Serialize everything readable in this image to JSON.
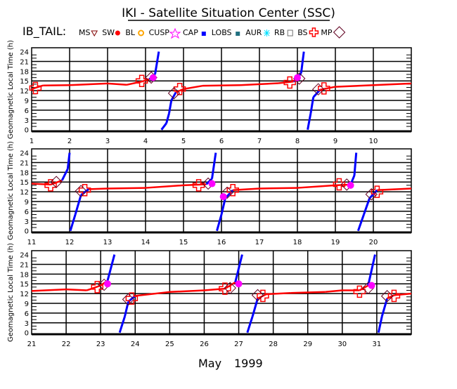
{
  "title": "IKI - Satellite Situation Center (SSC)",
  "legend": {
    "label": "IB_TAIL:",
    "items": [
      {
        "name": "MS",
        "symbol": "triangle-down",
        "color": "#800000"
      },
      {
        "name": "SW",
        "symbol": "sun",
        "color": "#ff0000"
      },
      {
        "name": "BL",
        "symbol": "circle-ring",
        "color": "#ffa500"
      },
      {
        "name": "CUSP",
        "symbol": "star",
        "color": "#ff00ff"
      },
      {
        "name": "CAP",
        "symbol": "filled-square",
        "color": "#0000ff"
      },
      {
        "name": "LOBS",
        "symbol": "small-square",
        "color": "#207080"
      },
      {
        "name": "AUR",
        "symbol": "asterisk",
        "color": "#00e0ff"
      },
      {
        "name": "RB",
        "symbol": "open-square",
        "color": "#707070"
      },
      {
        "name": "BS",
        "symbol": "cross",
        "color": "#ff0000"
      },
      {
        "name": "MP",
        "symbol": "diamond",
        "color": "#600020"
      }
    ]
  },
  "xlabel_month": "May",
  "xlabel_year": "1999",
  "chart_data": [
    {
      "type": "scatter",
      "ylabel": "Geomagnetic Local Time (h)",
      "yticks": [
        0,
        3,
        6,
        9,
        12,
        15,
        18,
        21,
        24
      ],
      "ylim": [
        -0.5,
        25.2
      ],
      "xlim": [
        1,
        11
      ],
      "xticks": [
        "1",
        "2",
        "3",
        "4",
        "5",
        "6",
        "7",
        "8",
        "9",
        "10"
      ],
      "trace": [
        [
          1,
          12.5
        ],
        [
          1.3,
          13.6
        ],
        [
          2,
          13.7
        ],
        [
          3,
          14.2
        ],
        [
          3.5,
          13.8
        ],
        [
          3.9,
          14.8
        ],
        [
          4.1,
          15.5
        ],
        [
          4.25,
          17
        ],
        [
          4.35,
          24
        ]
      ],
      "trace2": [
        [
          4.42,
          0
        ],
        [
          4.55,
          2
        ],
        [
          4.62,
          5
        ],
        [
          4.68,
          9
        ],
        [
          4.8,
          11.5
        ],
        [
          5,
          12.5
        ],
        [
          5.5,
          13.5
        ],
        [
          6.5,
          13.7
        ],
        [
          7.5,
          14.3
        ],
        [
          7.9,
          14.8
        ],
        [
          8.0,
          15.8
        ],
        [
          8.1,
          17.5
        ],
        [
          8.17,
          24
        ]
      ],
      "trace3": [
        [
          8.27,
          0
        ],
        [
          8.35,
          5
        ],
        [
          8.42,
          10
        ],
        [
          8.6,
          12.3
        ],
        [
          9,
          13.2
        ],
        [
          10,
          13.7
        ],
        [
          11,
          14.2
        ]
      ],
      "mp": [
        [
          1.1,
          12.8
        ],
        [
          3.9,
          15
        ],
        [
          4.9,
          12.5
        ],
        [
          7.8,
          14.5
        ],
        [
          8.7,
          12.7
        ]
      ],
      "bs": [
        [
          4.15,
          15.8
        ],
        [
          4.75,
          11
        ],
        [
          8.05,
          15.5
        ],
        [
          8.55,
          12.2
        ]
      ],
      "cusp": [
        [
          4.2,
          16
        ],
        [
          8.0,
          16
        ]
      ]
    },
    {
      "type": "scatter",
      "ylabel": "Geomagnetic Local Time (h)",
      "yticks": [
        0,
        3,
        6,
        9,
        12,
        15,
        18,
        21,
        24
      ],
      "ylim": [
        -0.5,
        25.2
      ],
      "xlim": [
        11,
        21
      ],
      "xticks": [
        "11",
        "12",
        "13",
        "14",
        "15",
        "16",
        "17",
        "18",
        "19",
        "20"
      ],
      "trace": [
        [
          11,
          14.5
        ],
        [
          11.5,
          14.2
        ],
        [
          11.8,
          15.5
        ],
        [
          11.95,
          19
        ],
        [
          12.0,
          24
        ]
      ],
      "trace2": [
        [
          12.02,
          0
        ],
        [
          12.15,
          5
        ],
        [
          12.3,
          11
        ],
        [
          12.5,
          12.8
        ],
        [
          13,
          13
        ],
        [
          14,
          13.2
        ],
        [
          15,
          14
        ],
        [
          15.6,
          14.3
        ],
        [
          15.75,
          16
        ],
        [
          15.85,
          24
        ]
      ],
      "trace3": [
        [
          15.88,
          0
        ],
        [
          16.0,
          5
        ],
        [
          16.1,
          10
        ],
        [
          16.3,
          12.5
        ],
        [
          17,
          13
        ],
        [
          18,
          13.2
        ],
        [
          19,
          14
        ],
        [
          19.4,
          14.2
        ],
        [
          19.5,
          17
        ],
        [
          19.55,
          24
        ]
      ],
      "trace4": [
        [
          19.6,
          0
        ],
        [
          19.75,
          5
        ],
        [
          19.9,
          10
        ],
        [
          20.1,
          12.5
        ],
        [
          21,
          13
        ]
      ],
      "mp": [
        [
          11.5,
          14
        ],
        [
          12.4,
          12.5
        ],
        [
          15.4,
          14
        ],
        [
          16.3,
          12.5
        ],
        [
          19.1,
          14.3
        ],
        [
          20.1,
          12
        ]
      ],
      "bs": [
        [
          11.65,
          14.8
        ],
        [
          12.3,
          12
        ],
        [
          15.65,
          14.3
        ],
        [
          16.15,
          11.5
        ],
        [
          19.3,
          14
        ],
        [
          19.95,
          11
        ]
      ],
      "cusp": [
        [
          15.75,
          14.5
        ],
        [
          16.05,
          10.5
        ],
        [
          19.4,
          14
        ]
      ]
    },
    {
      "type": "scatter",
      "ylabel": "Geomagnetic Local Time (h)",
      "yticks": [
        0,
        3,
        6,
        9,
        12,
        15,
        18,
        21,
        24
      ],
      "ylim": [
        -0.5,
        25.2
      ],
      "xlim": [
        21,
        32
      ],
      "xticks": [
        "21",
        "22",
        "23",
        "24",
        "25",
        "26",
        "27",
        "28",
        "29",
        "30",
        "31"
      ],
      "trace": [
        [
          21,
          12.8
        ],
        [
          22,
          13.3
        ],
        [
          22.6,
          13
        ],
        [
          23.0,
          14.5
        ],
        [
          23.2,
          16
        ],
        [
          23.4,
          24
        ]
      ],
      "trace2": [
        [
          23.55,
          0
        ],
        [
          23.7,
          5
        ],
        [
          23.8,
          9.5
        ],
        [
          24,
          11.3
        ],
        [
          25,
          12.5
        ],
        [
          26,
          13
        ],
        [
          26.6,
          13.5
        ],
        [
          26.9,
          15.5
        ],
        [
          27.1,
          24
        ]
      ],
      "trace3": [
        [
          27.25,
          0
        ],
        [
          27.4,
          5
        ],
        [
          27.55,
          10.5
        ],
        [
          27.8,
          11.8
        ],
        [
          28.5,
          12.2
        ],
        [
          29.5,
          12.5
        ],
        [
          30,
          13
        ],
        [
          30.5,
          13
        ],
        [
          30.75,
          14.5
        ],
        [
          30.95,
          24
        ]
      ],
      "trace4": [
        [
          31.05,
          0
        ],
        [
          31.15,
          5
        ],
        [
          31.3,
          10.5
        ],
        [
          31.5,
          11.5
        ],
        [
          32,
          12
        ]
      ],
      "mp": [
        [
          22.9,
          14
        ],
        [
          23.9,
          10.5
        ],
        [
          26.6,
          13.5
        ],
        [
          27.7,
          11.3
        ],
        [
          30.5,
          12.6
        ],
        [
          31.5,
          11.3
        ]
      ],
      "bs": [
        [
          23.1,
          14.5
        ],
        [
          23.8,
          10
        ],
        [
          26.75,
          13.5
        ],
        [
          27.55,
          11.3
        ],
        [
          30.75,
          13.5
        ],
        [
          31.3,
          11
        ]
      ],
      "cusp": [
        [
          23.2,
          15
        ],
        [
          27.0,
          15
        ],
        [
          30.85,
          14.5
        ]
      ]
    }
  ]
}
